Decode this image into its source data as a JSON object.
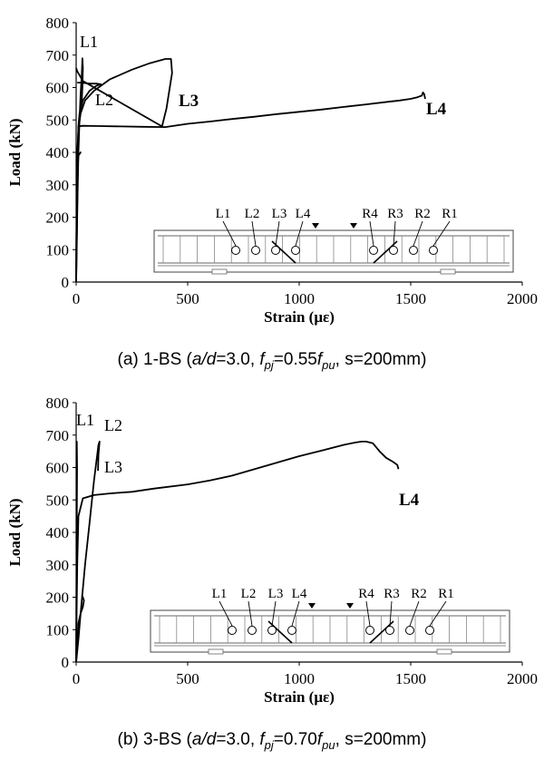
{
  "chart_data": [
    {
      "type": "line",
      "xlabel": "Strain (με)",
      "ylabel": "Load (kN)",
      "xlim": [
        0,
        2000
      ],
      "ylim": [
        0,
        800
      ],
      "xticks": [
        "0",
        "500",
        "1000",
        "1500",
        "2000"
      ],
      "yticks": [
        "0",
        "100",
        "200",
        "300",
        "400",
        "500",
        "600",
        "700",
        "800"
      ],
      "caption": {
        "prefix": "(a)",
        "specimen": "1-BS",
        "ad": "a/d",
        "ad_value": "=3.0,",
        "fpj": "f",
        "fpj_sub": "pj",
        "fpj_eq": "=0.55",
        "fpu": "f",
        "fpu_sub": "pu",
        "spacing": "s=200mm)"
      },
      "series": [
        {
          "name": "L1",
          "x": [
            0,
            3,
            6,
            10,
            15,
            20,
            25,
            28,
            30,
            28,
            25,
            22
          ],
          "y": [
            0,
            120,
            260,
            400,
            500,
            580,
            640,
            690,
            660,
            600,
            560,
            540
          ]
        },
        {
          "name": "L2",
          "x": [
            0,
            2,
            4,
            6,
            8,
            10,
            15,
            30,
            60,
            90,
            110,
            90,
            60,
            20,
            5
          ],
          "y": [
            0,
            100,
            200,
            300,
            400,
            480,
            520,
            560,
            590,
            605,
            610,
            612,
            612,
            615,
            615
          ]
        },
        {
          "name": "L3",
          "x": [
            0,
            1,
            2,
            3,
            5,
            10,
            20,
            40,
            80,
            150,
            250,
            330,
            400,
            425,
            430,
            405,
            385,
            30,
            5,
            0
          ],
          "y": [
            0,
            100,
            200,
            300,
            400,
            470,
            520,
            560,
            590,
            625,
            655,
            675,
            688,
            688,
            645,
            535,
            480,
            620,
            650,
            660
          ]
        },
        {
          "name": "L4",
          "x": [
            0,
            1,
            2,
            3,
            10,
            20,
            10,
            5,
            8,
            10,
            30,
            100,
            200,
            300,
            400,
            500,
            600,
            700,
            800,
            900,
            1000,
            1100,
            1200,
            1300,
            1400,
            1450,
            1500,
            1530,
            1550,
            1555,
            1560,
            1565
          ],
          "y": [
            0,
            100,
            200,
            300,
            390,
            400,
            390,
            385,
            430,
            480,
            482,
            481,
            480,
            479,
            478,
            488,
            495,
            503,
            510,
            518,
            525,
            532,
            540,
            548,
            556,
            560,
            565,
            570,
            575,
            585,
            580,
            565
          ]
        }
      ],
      "labels": [
        "L1",
        "L2",
        "L3",
        "L4"
      ],
      "inset_labels": [
        "L1",
        "L2",
        "L3",
        "L4",
        "R4",
        "R3",
        "R2",
        "R1"
      ]
    },
    {
      "type": "line",
      "xlabel": "Strain (με)",
      "ylabel": "Load (kN)",
      "xlim": [
        0,
        2000
      ],
      "ylim": [
        0,
        800
      ],
      "xticks": [
        "0",
        "500",
        "1000",
        "1500",
        "2000"
      ],
      "yticks": [
        "0",
        "100",
        "200",
        "300",
        "400",
        "500",
        "600",
        "700",
        "800"
      ],
      "caption": {
        "prefix": "(b)",
        "specimen": "3-BS",
        "ad": "a/d",
        "ad_value": "=3.0,",
        "fpj": "f",
        "fpj_sub": "pj",
        "fpj_eq": "=0.70",
        "fpu": "f",
        "fpu_sub": "pu",
        "spacing": "s=200mm)"
      },
      "series": [
        {
          "name": "L1",
          "x": [
            0,
            1,
            2,
            3,
            4,
            3,
            2
          ],
          "y": [
            0,
            150,
            300,
            450,
            600,
            680,
            650
          ]
        },
        {
          "name": "L2",
          "x": [
            0,
            10,
            20,
            40,
            60,
            80,
            100,
            105,
            100,
            98
          ],
          "y": [
            0,
            70,
            150,
            300,
            430,
            560,
            670,
            680,
            640,
            590
          ]
        },
        {
          "name": "L3",
          "x": [
            0,
            5,
            10,
            20,
            30,
            35,
            30,
            25
          ],
          "y": [
            0,
            60,
            120,
            150,
            170,
            190,
            200,
            205
          ]
        },
        {
          "name": "L4",
          "x": [
            0,
            2,
            5,
            10,
            30,
            80,
            150,
            250,
            350,
            500,
            600,
            700,
            800,
            900,
            1000,
            1100,
            1200,
            1250,
            1280,
            1300,
            1330,
            1360,
            1390,
            1420,
            1440,
            1445
          ],
          "y": [
            0,
            150,
            300,
            450,
            505,
            515,
            520,
            525,
            535,
            548,
            560,
            575,
            595,
            615,
            635,
            652,
            670,
            677,
            680,
            680,
            675,
            650,
            630,
            618,
            608,
            595
          ]
        }
      ],
      "labels": [
        "L1",
        "L2",
        "L3",
        "L4"
      ],
      "inset_labels": [
        "L1",
        "L2",
        "L3",
        "L4",
        "R4",
        "R3",
        "R2",
        "R1"
      ]
    }
  ]
}
